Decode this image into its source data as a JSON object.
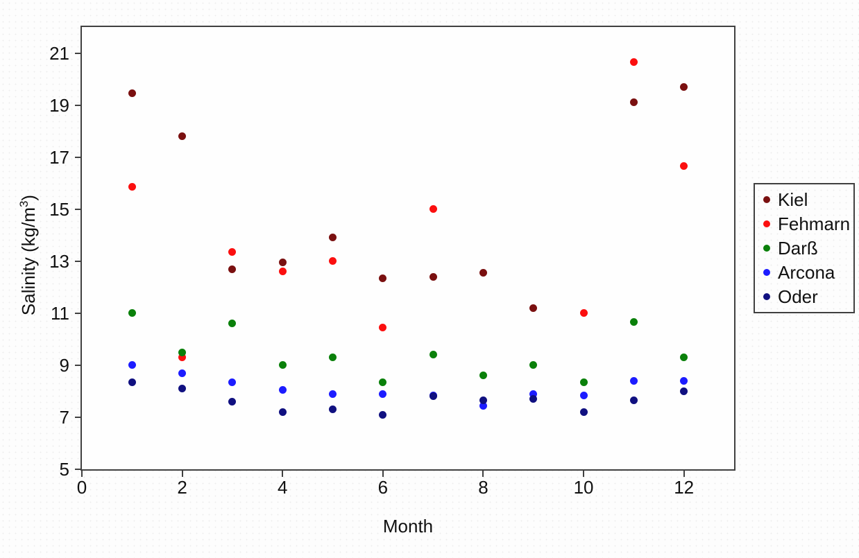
{
  "figure": {
    "colors": {
      "axis": "#404040",
      "text": "#111111",
      "background": "#fdfdfd"
    }
  },
  "chart_data": {
    "type": "scatter",
    "title": "",
    "xlabel": "Month",
    "ylabel": "Salinity (kg/m³)",
    "ylabel_parts": {
      "pre": "Salinity (kg/m",
      "sup": "3",
      "post": ")"
    },
    "xlim": [
      0,
      13
    ],
    "ylim": [
      5,
      22
    ],
    "xticks": [
      0,
      2,
      4,
      6,
      8,
      10,
      12
    ],
    "yticks": [
      5,
      7,
      9,
      11,
      13,
      15,
      17,
      19,
      21
    ],
    "grid": false,
    "legend_position": "right-outside",
    "x": [
      1,
      2,
      3,
      4,
      5,
      6,
      7,
      8,
      9,
      10,
      11,
      12
    ],
    "series": [
      {
        "name": "Kiel",
        "color": "#7a1010",
        "values": [
          19.45,
          17.8,
          12.7,
          12.95,
          13.9,
          12.35,
          12.4,
          12.55,
          11.2,
          null,
          19.1,
          19.7
        ]
      },
      {
        "name": "Fehmarn",
        "color": "#fb0f0f",
        "values": [
          15.85,
          9.3,
          13.35,
          12.6,
          13.0,
          10.45,
          15.0,
          null,
          null,
          11.0,
          20.65,
          16.65
        ]
      },
      {
        "name": "Darß",
        "color": "#0a800a",
        "values": [
          11.0,
          9.5,
          10.6,
          9.0,
          9.3,
          8.35,
          9.4,
          8.6,
          9.0,
          8.35,
          10.65,
          9.3
        ]
      },
      {
        "name": "Arcona",
        "color": "#1c1cff",
        "values": [
          9.0,
          8.7,
          8.35,
          8.05,
          7.9,
          7.9,
          7.85,
          7.45,
          7.9,
          7.85,
          8.4,
          8.4
        ]
      },
      {
        "name": "Oder",
        "color": "#101080",
        "values": [
          8.35,
          8.1,
          7.6,
          7.2,
          7.3,
          7.1,
          7.8,
          7.65,
          7.7,
          7.2,
          7.65,
          8.0
        ]
      }
    ]
  }
}
